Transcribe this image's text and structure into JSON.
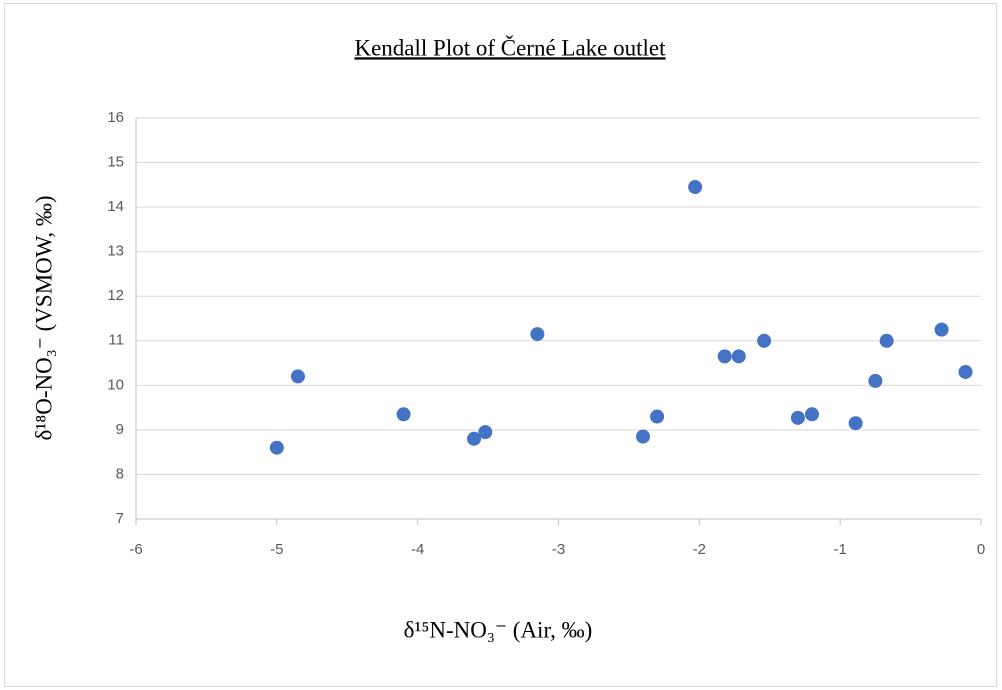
{
  "chart_data": {
    "type": "scatter",
    "title": "Kendall Plot of  Černé Lake outlet",
    "x_label": "δ¹⁵N-NO₃⁻ (Air, ‰)",
    "y_label": "δ¹⁸O-NO₃⁻ (VSMOW, ‰)",
    "x": [
      -5.0,
      -4.85,
      -4.1,
      -3.6,
      -3.52,
      -3.15,
      -2.4,
      -2.3,
      -2.03,
      -1.82,
      -1.72,
      -1.54,
      -1.3,
      -1.2,
      -0.89,
      -0.75,
      -0.67,
      -0.28,
      -0.11
    ],
    "values": [
      8.6,
      10.2,
      9.35,
      8.8,
      8.95,
      11.15,
      8.85,
      9.3,
      14.45,
      10.65,
      10.65,
      11.0,
      9.27,
      9.35,
      9.15,
      10.1,
      11.0,
      11.25,
      10.3
    ],
    "color": "#4472c4",
    "xlim": [
      -6,
      0
    ],
    "xticks": [
      -6,
      -5,
      -4,
      -3,
      -2,
      -1,
      0
    ],
    "ylim": [
      7,
      16
    ],
    "yticks": [
      7,
      8,
      9,
      10,
      11,
      12,
      13,
      14,
      15,
      16
    ],
    "grid": true
  }
}
